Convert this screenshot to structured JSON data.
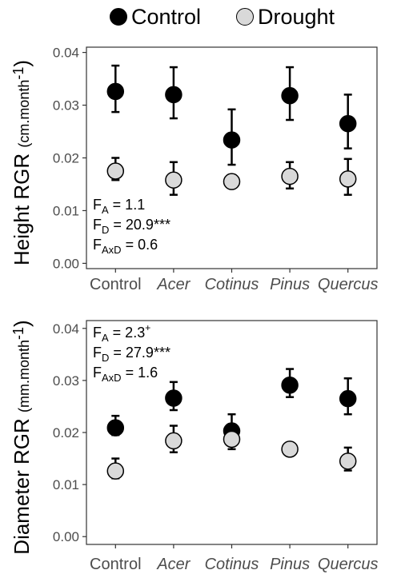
{
  "legend": [
    {
      "name": "Control",
      "color": "#000000"
    },
    {
      "name": "Drought",
      "color": "#d9d9d9"
    }
  ],
  "chart_data": [
    {
      "type": "scatter",
      "ylabel_main": "Height RGR",
      "ylabel_unit": "(cm.month",
      "ylabel_sup": "-1",
      "ylabel_close": ")",
      "categories": [
        "Control",
        "Acer",
        "Cotinus",
        "Pinus",
        "Quercus"
      ],
      "italic": [
        false,
        true,
        true,
        true,
        true
      ],
      "ylim": [
        -0.001,
        0.041
      ],
      "yticks": [
        "0.00",
        "0.01",
        "0.02",
        "0.03",
        "0.04"
      ],
      "ytick_values": [
        0,
        0.01,
        0.02,
        0.03,
        0.04
      ],
      "series": [
        {
          "name": "Control",
          "color": "#000000",
          "values": [
            0.0326,
            0.032,
            0.0234,
            0.0318,
            0.0265
          ],
          "err_low": [
            0.0287,
            0.0275,
            0.0187,
            0.0272,
            0.0218
          ],
          "err_high": [
            0.0375,
            0.0372,
            0.0292,
            0.0372,
            0.032
          ]
        },
        {
          "name": "Drought",
          "color": "#d9d9d9",
          "values": [
            0.0175,
            0.0158,
            0.0155,
            0.0165,
            0.016
          ],
          "err_low": [
            0.0158,
            0.013,
            0.0148,
            0.0142,
            0.013
          ],
          "err_high": [
            0.02,
            0.0192,
            0.016,
            0.0192,
            0.0198
          ]
        }
      ],
      "annotations": [
        {
          "base": "F",
          "sub": "A",
          "sup": "",
          "rest": " = 1.1"
        },
        {
          "base": "F",
          "sub": "D",
          "sup": "",
          "rest": " = 20.9***"
        },
        {
          "base": "F",
          "sub": "AxD",
          "sup": "",
          "rest": " = 0.6"
        }
      ],
      "annotation_position": "bottom-left",
      "grid": false
    },
    {
      "type": "scatter",
      "ylabel_main": "Diameter RGR",
      "ylabel_unit": "(mm.month",
      "ylabel_sup": "-1",
      "ylabel_close": ")",
      "categories": [
        "Control",
        "Acer",
        "Cotinus",
        "Pinus",
        "Quercus"
      ],
      "italic": [
        false,
        true,
        true,
        true,
        true
      ],
      "ylim": [
        -0.0015,
        0.0415
      ],
      "yticks": [
        "0.00",
        "0.01",
        "0.02",
        "0.03",
        "0.04"
      ],
      "ytick_values": [
        0,
        0.01,
        0.02,
        0.03,
        0.04
      ],
      "series": [
        {
          "name": "Control",
          "color": "#000000",
          "values": [
            0.0209,
            0.0266,
            0.0203,
            0.0291,
            0.0265
          ],
          "err_low": [
            0.0195,
            0.0243,
            0.0185,
            0.0268,
            0.0235
          ],
          "err_high": [
            0.0232,
            0.0297,
            0.0235,
            0.0322,
            0.0304
          ]
        },
        {
          "name": "Drought",
          "color": "#d9d9d9",
          "values": [
            0.0126,
            0.0184,
            0.0187,
            0.0168,
            0.0145
          ],
          "err_low": [
            0.0112,
            0.0162,
            0.0168,
            0.0168,
            0.0127
          ],
          "err_high": [
            0.015,
            0.0213,
            0.02,
            0.0168,
            0.0171
          ]
        }
      ],
      "annotations": [
        {
          "base": "F",
          "sub": "A",
          "sup": "+",
          "rest": " = 2.3"
        },
        {
          "base": "F",
          "sub": "D",
          "sup": "",
          "rest": " = 27.9***"
        },
        {
          "base": "F",
          "sub": "AxD",
          "sup": "",
          "rest": " = 1.6"
        }
      ],
      "annotation_position": "top-left",
      "grid": false
    }
  ]
}
